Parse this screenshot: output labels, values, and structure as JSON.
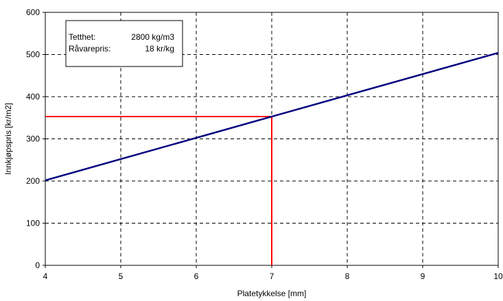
{
  "chart_data": {
    "type": "line",
    "title": "",
    "xlabel": "Platetykkelse [mm]",
    "ylabel": "Innkjøpspris [kr/m2]",
    "xlim": [
      4,
      10
    ],
    "ylim": [
      0,
      600
    ],
    "xticks": [
      4,
      5,
      6,
      7,
      8,
      9,
      10
    ],
    "yticks": [
      0,
      100,
      200,
      300,
      400,
      500,
      600
    ],
    "grid": true,
    "grid_style": "dashed",
    "series": [
      {
        "color": "#000080",
        "x": [
          4,
          10
        ],
        "y": [
          201.6,
          504
        ]
      }
    ],
    "reference_lines": [
      {
        "color": "#ff0000",
        "x": [
          4,
          7,
          7
        ],
        "y": [
          352.8,
          352.8,
          0
        ]
      }
    ],
    "info_box": {
      "rows": [
        {
          "label": "Tetthet:",
          "value": "2800 kg/m3"
        },
        {
          "label": "Råvarepris:",
          "value": "18 kr/kg"
        }
      ]
    }
  }
}
